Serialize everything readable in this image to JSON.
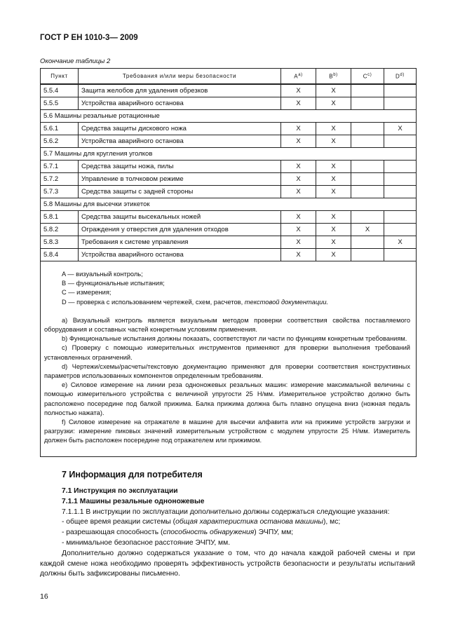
{
  "header": {
    "title": "ГОСТ Р ЕН 1010-3— 2009"
  },
  "caption": "Окончание таблицы 2",
  "table": {
    "columns": [
      {
        "label": "Пункт"
      },
      {
        "label": "Требования и/или меры безопасности"
      },
      {
        "label": "A",
        "note": "a)"
      },
      {
        "label": "B",
        "note": "b)"
      },
      {
        "label": "C",
        "note": "c)"
      },
      {
        "label": "D",
        "note": "d)"
      }
    ],
    "rows": [
      {
        "number": "5.5.4",
        "text": "Защита желобов для удаления обрезков",
        "marks": [
          "X",
          "X",
          null,
          null
        ]
      },
      {
        "number": "5.5.5",
        "text": "Устройства аварийного останова",
        "marks": [
          "X",
          "X",
          null,
          null
        ]
      },
      {
        "section": "5.6 Машины резальные ротационные"
      },
      {
        "number": "5.6.1",
        "text": "Средства защиты дискового ножа",
        "marks": [
          "X",
          "X",
          null,
          "X"
        ]
      },
      {
        "number": "5.6.2",
        "text": "Устройства аварийного останова",
        "marks": [
          "X",
          "X",
          null,
          null
        ]
      },
      {
        "section": "5.7 Машины для кругления уголков"
      },
      {
        "number": "5.7.1",
        "text": "Средства защиты ножа, пилы",
        "marks": [
          "X",
          "X",
          null,
          null
        ]
      },
      {
        "number": "5.7.2",
        "text": "Управление в толчковом режиме",
        "marks": [
          "X",
          "X",
          null,
          null
        ]
      },
      {
        "number": "5.7.3",
        "text": "Средства защиты с задней стороны",
        "marks": [
          "X",
          "X",
          null,
          null
        ]
      },
      {
        "section": "5.8 Машины для высечки этикеток"
      },
      {
        "number": "5.8.1",
        "text": "Средства защиты высекальных ножей",
        "marks": [
          "X",
          "X",
          null,
          null
        ]
      },
      {
        "number": "5.8.2",
        "text": "Ограждения у отверстия для удаления отходов",
        "marks": [
          "X",
          "X",
          "X",
          null
        ]
      },
      {
        "number": "5.8.3",
        "text": "Требования к системе управления",
        "marks": [
          "X",
          "X",
          null,
          "X"
        ]
      },
      {
        "number": "5.8.4",
        "text": "Устройства аварийного останова",
        "marks": [
          "X",
          "X",
          null,
          null
        ]
      }
    ],
    "legend": [
      [
        "A — визуальный контроль;"
      ],
      [
        "B — функциональные испытания;"
      ],
      [
        "C — измерения;"
      ],
      [
        "D — проверка с использованием чертежей, схем, расчетов, ",
        "текстовой документации."
      ]
    ],
    "footnotes": [
      "а) Визуальный контроль является визуальным методом проверки соответствия свойства поставляемого оборудования и составных частей конкретным условиям применения.",
      "b) Функциональные испытания должны показать, соответствуют ли части по функциям конкретным требованиям.",
      "c) Проверку с помощью измерительных инструментов применяют для проверки выполнения требований установленных ограничений.",
      "d) Чертежи/схемы/расчеты/текстовую документацию применяют для проверки соответствия конструктивных параметров использованных компонентов определенным требованиям.",
      "e) Силовое измерение на линии реза одноножевых резальных машин: измерение максимальной величины с помощью измерительного устройства с величиной упругости 25 Н/мм. Измерительное устройство должно быть расположено посередине под балкой прижима. Балка прижима должна быть плавно опущена вниз (ножная педаль полностью нажата).",
      "f) Силовое измерение на отражателе в машине для высечки алфавита или на прижиме устройств загрузки и разгрузки: измерение пиковых значений измерительным устройством с модулем упругости 25 Н/мм. Измеритель должен быть расположен посередине под отражателем или прижимом."
    ]
  },
  "section": {
    "heading": "7 Информация для потребителя",
    "subheading": "7.1 Инструкция по эксплуатации",
    "subsubheading": "7.1.1 Машины резальные одноножевые",
    "intro": "7.1.1.1 В инструкции по эксплуатации дополнительно должны содержаться следующие указания:",
    "items": [
      [
        "- общее время реакции системы (",
        "общая характеристика останова машины",
        "), мс;"
      ],
      [
        "- разрешающая способность (",
        "способность обнаружения",
        ") ЭЧПУ, мм;"
      ],
      [
        "- минимальное безопасное расстояние ЭЧПУ, мм."
      ]
    ],
    "closing": "Дополнительно должно содержаться указание о том, что до начала каждой рабочей смены и при каждой смене ножа необходимо проверять эффективность устройств безопасности и результаты испытаний должны быть зафиксированы письменно."
  },
  "page_number": "16"
}
